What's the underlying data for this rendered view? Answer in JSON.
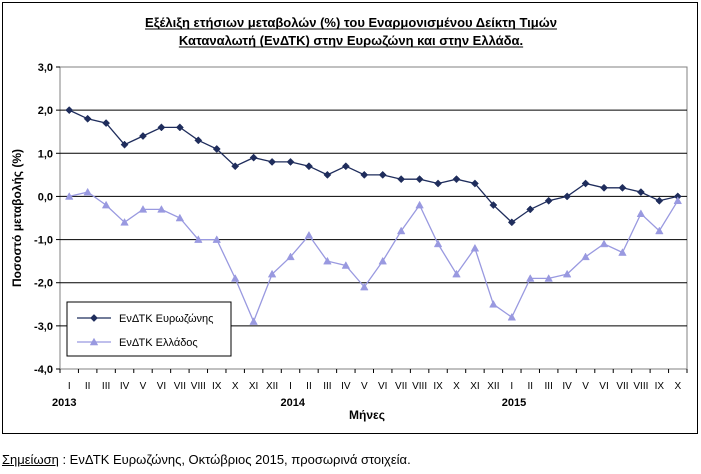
{
  "chart_data": {
    "type": "line",
    "title_lines": [
      "Εξέλιξη ετήσιων μεταβολών (%) του Εναρμονισμένου Δείκτη Τιμών",
      "Καταναλωτή (ΕνΔΤΚ) στην Ευρωζώνη  και στην Ελλάδα."
    ],
    "ylabel": "Ποσοστό μεταβολής (%)",
    "xlabel": "Μήνες",
    "ylim": [
      -4.0,
      3.0
    ],
    "yticks": [
      3.0,
      2.0,
      1.0,
      0.0,
      -1.0,
      -2.0,
      -3.0,
      -4.0
    ],
    "ytick_labels": [
      "3,0",
      "2,0",
      "1,0",
      "0,0",
      "-1,0",
      "-2,0",
      "-3,0",
      "-4,0"
    ],
    "categories": [
      "I",
      "II",
      "III",
      "IV",
      "V",
      "VI",
      "VII",
      "VIII",
      "IX",
      "X",
      "XI",
      "XII",
      "I",
      "II",
      "III",
      "IV",
      "V",
      "VI",
      "VII",
      "VIII",
      "IX",
      "X",
      "XI",
      "XII",
      "I",
      "II",
      "III",
      "IV",
      "V",
      "VI",
      "VII",
      "VIII",
      "IX",
      "X"
    ],
    "year_labels": [
      {
        "index": 0,
        "label": "2013"
      },
      {
        "index": 12,
        "label": "2014"
      },
      {
        "index": 24,
        "label": "2015"
      }
    ],
    "series": [
      {
        "name": "ΕνΔΤΚ Ευρωζώνης",
        "color": "#1f2d5c",
        "marker": "diamond",
        "values": [
          2.0,
          1.8,
          1.7,
          1.2,
          1.4,
          1.6,
          1.6,
          1.3,
          1.1,
          0.7,
          0.9,
          0.8,
          0.8,
          0.7,
          0.5,
          0.7,
          0.5,
          0.5,
          0.4,
          0.4,
          0.3,
          0.4,
          0.3,
          -0.2,
          -0.6,
          -0.3,
          -0.1,
          0.0,
          0.3,
          0.2,
          0.2,
          0.1,
          -0.1,
          0.0
        ]
      },
      {
        "name": "ΕνΔΤΚ Ελλάδος",
        "color": "#9999e0",
        "marker": "triangle",
        "values": [
          0.0,
          0.1,
          -0.2,
          -0.6,
          -0.3,
          -0.3,
          -0.5,
          -1.0,
          -1.0,
          -1.9,
          -2.9,
          -1.8,
          -1.4,
          -0.9,
          -1.5,
          -1.6,
          -2.1,
          -1.5,
          -0.8,
          -0.2,
          -1.1,
          -1.8,
          -1.2,
          -2.5,
          -2.8,
          -1.9,
          -1.9,
          -1.8,
          -1.4,
          -1.1,
          -1.3,
          -0.4,
          -0.8,
          -0.1
        ]
      }
    ],
    "grid": true,
    "legend": "bottom-left"
  },
  "footnote": {
    "label": "Σημείωση",
    "text": " :  ΕνΔΤΚ Ευρωζώνης, Οκτώβριος 2015, προσωρινά στοιχεία."
  }
}
